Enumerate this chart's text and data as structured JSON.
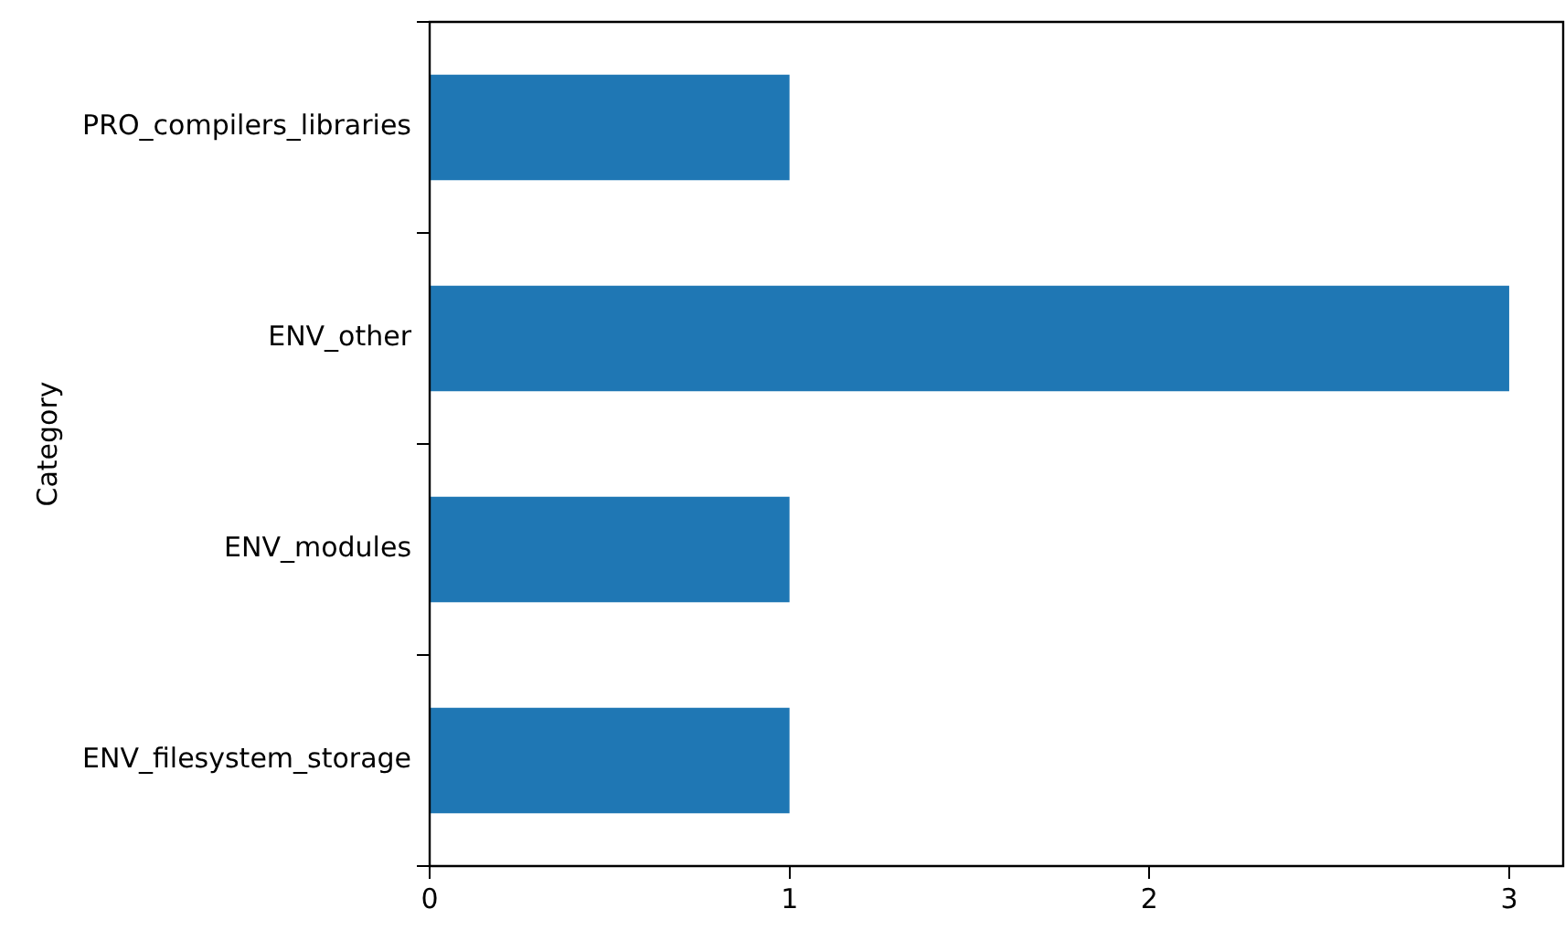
{
  "chart_data": {
    "type": "bar",
    "orientation": "horizontal",
    "ylabel": "Category",
    "categories": [
      "PRO_compilers_libraries",
      "ENV_other",
      "ENV_modules",
      "ENV_filesystem_storage"
    ],
    "values": [
      1,
      3,
      1,
      1
    ],
    "color": "#1f77b4",
    "xlim": [
      0,
      3.15
    ],
    "xticks": [
      0,
      1,
      2,
      3
    ],
    "grid": false,
    "legend": false
  }
}
